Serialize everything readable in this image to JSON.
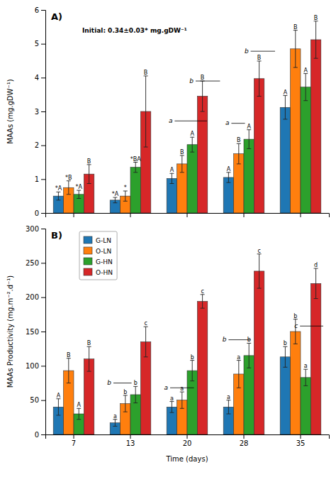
{
  "chart_data": [
    {
      "type": "bar",
      "title": "A)",
      "ylabel": "MAAs (mg.gDW⁻¹)",
      "categories": [
        null,
        null,
        null,
        null,
        null
      ],
      "ylim": [
        0,
        6
      ],
      "yticks": [
        0,
        1,
        2,
        3,
        4,
        5,
        6
      ],
      "series": [
        {
          "name": "G-LN",
          "values": [
            0.5,
            0.38,
            1.02,
            1.05,
            3.12
          ],
          "errors": [
            0.12,
            0.08,
            0.15,
            0.15,
            0.35
          ],
          "labels": [
            "*A",
            "*A",
            "A",
            "A",
            "A"
          ]
        },
        {
          "name": "O-LN",
          "values": [
            0.75,
            0.5,
            1.45,
            1.75,
            4.85
          ],
          "errors": [
            0.2,
            0.15,
            0.25,
            0.3,
            0.55
          ],
          "labels": [
            "*B",
            "*",
            "B",
            "B",
            "B"
          ]
        },
        {
          "name": "G-HN",
          "values": [
            0.55,
            1.35,
            2.02,
            2.18,
            3.72
          ],
          "errors": [
            0.12,
            0.15,
            0.22,
            0.28,
            0.4
          ],
          "labels": [
            "*A",
            "*BA",
            "A",
            "A",
            "A"
          ]
        },
        {
          "name": "O-HN",
          "values": [
            1.15,
            3.0,
            3.45,
            3.97,
            5.12
          ],
          "errors": [
            0.28,
            1.05,
            0.45,
            0.52,
            0.55
          ],
          "labels": [
            "B",
            "B",
            "B",
            "B",
            "B"
          ]
        }
      ],
      "annotations": [
        {
          "text": "Initial: 0.34±0.03* mg.gDW⁻¹"
        },
        {
          "text": "a",
          "y": 2.72
        },
        {
          "text": "b",
          "y": 3.9
        },
        {
          "text": "a",
          "y": 2.65
        },
        {
          "text": "b",
          "y": 4.78
        }
      ]
    },
    {
      "type": "bar",
      "title": "B)",
      "xlabel": "Time (days)",
      "ylabel": "MAAs Productivity (mg.m⁻².d⁻¹)",
      "categories": [
        "7",
        "13",
        "20",
        "28",
        "35"
      ],
      "ylim": [
        0,
        300
      ],
      "yticks": [
        0,
        50,
        100,
        150,
        200,
        250,
        300
      ],
      "legend": "upper left",
      "series": [
        {
          "name": "G-LN",
          "values": [
            40,
            17,
            40,
            40,
            113
          ],
          "errors": [
            12,
            5,
            8,
            10,
            15
          ],
          "labels": [
            "A",
            "a",
            "a",
            "a",
            "b"
          ]
        },
        {
          "name": "O-LN",
          "values": [
            93,
            45,
            50,
            88,
            150
          ],
          "errors": [
            18,
            12,
            12,
            20,
            18
          ],
          "labels": [
            "B",
            "b",
            "a",
            "a",
            "b"
          ]
        },
        {
          "name": "G-HN",
          "values": [
            30,
            58,
            93,
            115,
            83
          ],
          "errors": [
            8,
            12,
            15,
            18,
            12
          ],
          "labels": [
            "A",
            "b",
            "b",
            "b",
            "a"
          ]
        },
        {
          "name": "O-HN",
          "values": [
            110,
            135,
            194,
            238,
            220
          ],
          "errors": [
            18,
            22,
            10,
            25,
            22
          ],
          "labels": [
            "B",
            "c",
            "c",
            "c",
            "d"
          ]
        }
      ],
      "annotations": [
        {
          "text": "b",
          "y": 75
        },
        {
          "text": "a",
          "y": 68
        },
        {
          "text": "b",
          "y": 138
        },
        {
          "text": "c",
          "y": 158
        }
      ]
    }
  ]
}
